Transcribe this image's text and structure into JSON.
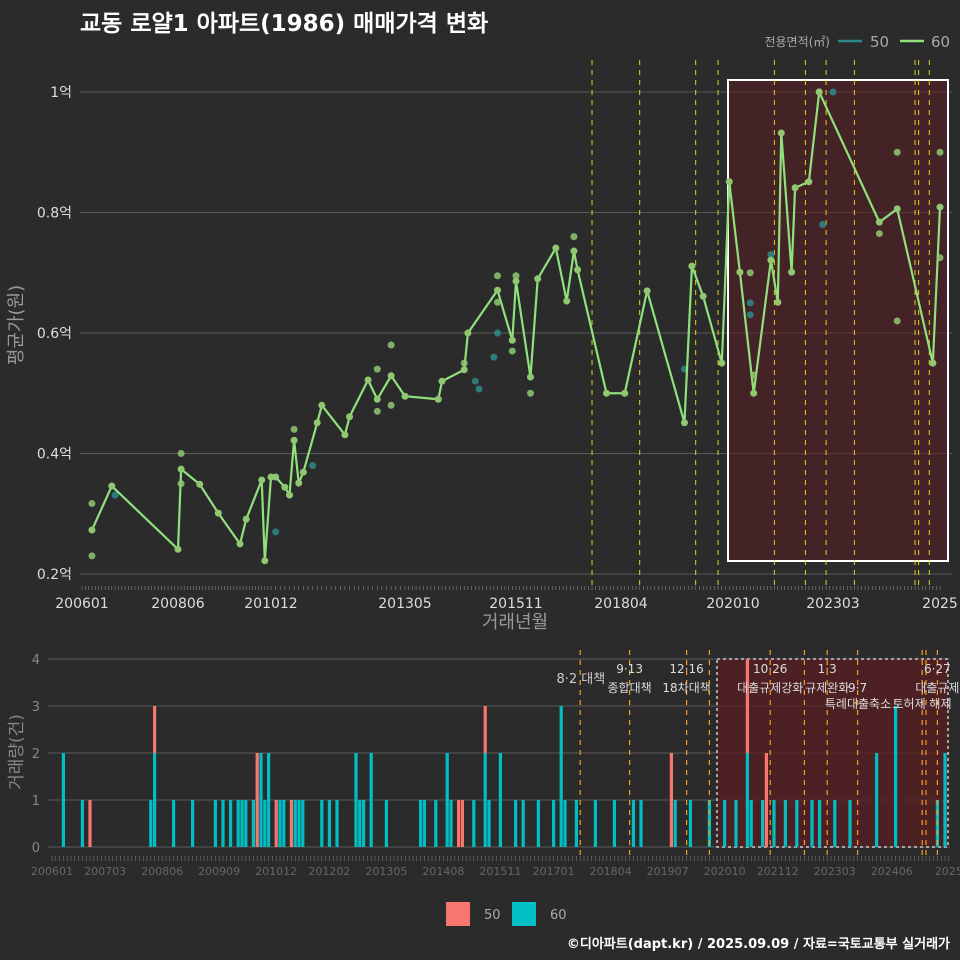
{
  "title": "교동 로얄1 아파트(1986) 매매가격 변화",
  "footer": "©디아파트(dapt.kr) / 2025.09.09 / 자료=국토교통부 실거래가",
  "colors": {
    "bg": "#2b2b2c",
    "line60": "#90e07c",
    "line50": "#2e8b8b",
    "bar50": "#f8766d",
    "bar60": "#00bfc4",
    "policy_top": "#e0d020",
    "policy_bottom": "#f0a020",
    "highlight": "#5a1e22"
  },
  "chart_data": [
    {
      "type": "line",
      "title": "교동 로얄1 아파트(1986) 매매가격 변화",
      "xlabel": "거래년월",
      "ylabel": "평균가(원)",
      "ylim": [
        0.2,
        1.0
      ],
      "yticks": [
        {
          "v": 0.2,
          "label": "0.2억"
        },
        {
          "v": 0.4,
          "label": "0.4억"
        },
        {
          "v": 0.6,
          "label": "0.6억"
        },
        {
          "v": 0.8,
          "label": "0.8억"
        },
        {
          "v": 1.0,
          "label": "1억"
        }
      ],
      "xticks": [
        "200601",
        "200806",
        "201012",
        "201305",
        "201511",
        "201804",
        "202010",
        "202303",
        "202509"
      ],
      "xtick_labels": [
        "200601",
        "200806",
        "201012",
        "201305",
        "201511",
        "201804",
        "202010",
        "202303",
        "2025"
      ],
      "legend": {
        "title": "전용면적(㎡)",
        "position": "top-right",
        "items": [
          {
            "name": "50",
            "color": "#2e8b8b"
          },
          {
            "name": "60",
            "color": "#90e07c"
          }
        ]
      },
      "highlight_range": [
        "202010",
        "202509"
      ],
      "series": [
        {
          "name": "60",
          "line": [
            [
              "200604",
              0.273
            ],
            [
              "200610",
              0.346
            ],
            [
              "200806",
              0.241
            ],
            [
              "200807",
              0.374
            ],
            [
              "200901",
              0.349
            ],
            [
              "200907",
              0.301
            ],
            [
              "201002",
              0.25
            ],
            [
              "201004",
              0.291
            ],
            [
              "201009",
              0.356
            ],
            [
              "201010",
              0.222
            ],
            [
              "201012",
              0.361
            ],
            [
              "201101",
              0.361
            ],
            [
              "201103",
              0.344
            ],
            [
              "201104",
              0.331
            ],
            [
              "201105",
              0.422
            ],
            [
              "201106",
              0.351
            ],
            [
              "201107",
              0.369
            ],
            [
              "201110",
              0.451
            ],
            [
              "201111",
              0.48
            ],
            [
              "201204",
              0.431
            ],
            [
              "201205",
              0.461
            ],
            [
              "201209",
              0.522
            ],
            [
              "201211",
              0.49
            ],
            [
              "201302",
              0.529
            ],
            [
              "201305",
              0.495
            ],
            [
              "201402",
              0.49
            ],
            [
              "201403",
              0.52
            ],
            [
              "201409",
              0.539
            ],
            [
              "201410",
              0.6
            ],
            [
              "201506",
              0.671
            ],
            [
              "201510",
              0.588
            ],
            [
              "201511",
              0.686
            ],
            [
              "201603",
              0.527
            ],
            [
              "201605",
              0.69
            ],
            [
              "201610",
              0.741
            ],
            [
              "201701",
              0.653
            ],
            [
              "201703",
              0.736
            ],
            [
              "201704",
              0.705
            ],
            [
              "201712",
              0.5
            ],
            [
              "201805",
              0.5
            ],
            [
              "201811",
              0.67
            ],
            [
              "201909",
              0.451
            ],
            [
              "201911",
              0.711
            ],
            [
              "202002",
              0.661
            ],
            [
              "202007",
              0.55
            ],
            [
              "202009",
              0.851
            ],
            [
              "202012",
              0.701
            ],
            [
              "202104",
              0.5
            ],
            [
              "202109",
              0.721
            ],
            [
              "202111",
              0.651
            ],
            [
              "202112",
              0.932
            ],
            [
              "202203",
              0.701
            ],
            [
              "202204",
              0.841
            ],
            [
              "202208",
              0.851
            ],
            [
              "202211",
              1.0
            ],
            [
              "202404",
              0.784
            ],
            [
              "202409",
              0.806
            ],
            [
              "202507",
              0.55
            ],
            [
              "202509",
              0.809
            ]
          ],
          "points": [
            [
              "200604",
              0.317
            ],
            [
              "200604",
              0.23
            ],
            [
              "200807",
              0.4
            ],
            [
              "200807",
              0.35
            ],
            [
              "201105",
              0.44
            ],
            [
              "201211",
              0.54
            ],
            [
              "201211",
              0.47
            ],
            [
              "201302",
              0.58
            ],
            [
              "201302",
              0.48
            ],
            [
              "201409",
              0.55
            ],
            [
              "201506",
              0.651
            ],
            [
              "201506",
              0.695
            ],
            [
              "201510",
              0.57
            ],
            [
              "201511",
              0.695
            ],
            [
              "201603",
              0.5
            ],
            [
              "201703",
              0.76
            ],
            [
              "202103",
              0.7
            ],
            [
              "202104",
              0.53
            ],
            [
              "202211",
              1.0
            ],
            [
              "202404",
              0.765
            ],
            [
              "202409",
              0.62
            ],
            [
              "202409",
              0.9
            ],
            [
              "202509",
              0.9
            ],
            [
              "202509",
              0.725
            ]
          ]
        },
        {
          "name": "50",
          "points": [
            [
              "200611",
              0.331
            ],
            [
              "201101",
              0.27
            ],
            [
              "201109",
              0.38
            ],
            [
              "201412",
              0.52
            ],
            [
              "201501",
              0.507
            ],
            [
              "201505",
              0.56
            ],
            [
              "201506",
              0.6
            ],
            [
              "201909",
              0.54
            ],
            [
              "202103",
              0.65
            ],
            [
              "202103",
              0.63
            ],
            [
              "202109",
              0.73
            ],
            [
              "202212",
              0.78
            ],
            [
              "202303",
              1.0
            ]
          ]
        }
      ]
    },
    {
      "type": "bar",
      "stacked": true,
      "xlabel": "",
      "ylabel": "거래량(건)",
      "ylim": [
        0,
        4
      ],
      "yticks": [
        "0",
        "1",
        "2",
        "3",
        "4"
      ],
      "xticks": [
        "200601",
        "200703",
        "200806",
        "200909",
        "201012",
        "201202",
        "201305",
        "201408",
        "201511",
        "201701",
        "201804",
        "201907",
        "202010",
        "202112",
        "202303",
        "202406",
        "202509"
      ],
      "xtick_labels": [
        "200601",
        "200703",
        "200806",
        "200909",
        "201012",
        "201202",
        "201305",
        "201408",
        "201511",
        "201701",
        "201804",
        "201907",
        "202010",
        "202112",
        "202303",
        "202406",
        "2025"
      ],
      "legend": {
        "position": "bottom",
        "items": [
          {
            "name": "50",
            "color": "#f8766d"
          },
          {
            "name": "60",
            "color": "#00bfc4"
          }
        ]
      },
      "highlight_range": [
        "202008",
        "202509"
      ],
      "bars": [
        [
          "200604",
          0,
          2
        ],
        [
          "200609",
          0,
          1
        ],
        [
          "200611",
          1,
          0
        ],
        [
          "200803",
          0,
          1
        ],
        [
          "200804",
          1,
          2
        ],
        [
          "200809",
          0,
          1
        ],
        [
          "200902",
          0,
          1
        ],
        [
          "200908",
          0,
          1
        ],
        [
          "200910",
          0,
          1
        ],
        [
          "200912",
          0,
          1
        ],
        [
          "201002",
          0,
          1
        ],
        [
          "201003",
          0,
          1
        ],
        [
          "201004",
          0,
          1
        ],
        [
          "201006",
          0,
          1
        ],
        [
          "201007",
          2,
          0
        ],
        [
          "201008",
          0,
          2
        ],
        [
          "201009",
          0,
          1
        ],
        [
          "201010",
          0,
          2
        ],
        [
          "201012",
          1,
          0
        ],
        [
          "201101",
          0,
          1
        ],
        [
          "201102",
          0,
          1
        ],
        [
          "201104",
          1,
          0
        ],
        [
          "201105",
          0,
          1
        ],
        [
          "201106",
          0,
          1
        ],
        [
          "201107",
          0,
          1
        ],
        [
          "201112",
          0,
          1
        ],
        [
          "201202",
          0,
          1
        ],
        [
          "201204",
          0,
          1
        ],
        [
          "201209",
          0,
          2
        ],
        [
          "201210",
          0,
          1
        ],
        [
          "201211",
          0,
          1
        ],
        [
          "201301",
          0,
          2
        ],
        [
          "201305",
          0,
          1
        ],
        [
          "201402",
          0,
          1
        ],
        [
          "201403",
          0,
          1
        ],
        [
          "201406",
          0,
          1
        ],
        [
          "201409",
          0,
          2
        ],
        [
          "201410",
          0,
          1
        ],
        [
          "201412",
          1,
          0
        ],
        [
          "201501",
          1,
          0
        ],
        [
          "201504",
          0,
          1
        ],
        [
          "201507",
          1,
          2
        ],
        [
          "201508",
          0,
          1
        ],
        [
          "201511",
          0,
          2
        ],
        [
          "201603",
          0,
          1
        ],
        [
          "201605",
          0,
          1
        ],
        [
          "201609",
          0,
          1
        ],
        [
          "201701",
          0,
          1
        ],
        [
          "201703",
          0,
          3
        ],
        [
          "201704",
          0,
          1
        ],
        [
          "201707",
          0,
          1
        ],
        [
          "201712",
          0,
          1
        ],
        [
          "201805",
          0,
          1
        ],
        [
          "201810",
          0,
          1
        ],
        [
          "201812",
          0,
          1
        ],
        [
          "201908",
          2,
          0
        ],
        [
          "201909",
          0,
          1
        ],
        [
          "202001",
          0,
          1
        ],
        [
          "202006",
          0,
          1
        ],
        [
          "202010",
          0,
          1
        ],
        [
          "202101",
          0,
          1
        ],
        [
          "202104",
          2,
          2
        ],
        [
          "202105",
          0,
          1
        ],
        [
          "202108",
          0,
          1
        ],
        [
          "202109",
          2,
          0
        ],
        [
          "202111",
          0,
          1
        ],
        [
          "202202",
          0,
          1
        ],
        [
          "202205",
          0,
          1
        ],
        [
          "202209",
          0,
          1
        ],
        [
          "202211",
          0,
          1
        ],
        [
          "202303",
          0,
          1
        ],
        [
          "202307",
          0,
          1
        ],
        [
          "202402",
          0,
          2
        ],
        [
          "202407",
          0,
          3
        ],
        [
          "202506",
          0,
          1
        ],
        [
          "202508",
          0,
          2
        ]
      ]
    }
  ],
  "policies": [
    {
      "month": "201708",
      "date": "8·2 대책",
      "name": ""
    },
    {
      "month": "201809",
      "date": "9·13",
      "name": "종합대책"
    },
    {
      "month": "201912",
      "date": "12·16",
      "name": "18차대책"
    },
    {
      "month": "202006",
      "date": "",
      "name": ""
    },
    {
      "month": "202110",
      "date": "10·26",
      "name": "대출규제강화"
    },
    {
      "month": "202207",
      "date": "",
      "name": ""
    },
    {
      "month": "202301",
      "date": "1·3",
      "name": "규제완화"
    },
    {
      "month": "202309",
      "date": "",
      "name": "9·7"
    },
    {
      "month": "202502",
      "date": "",
      "name": ""
    },
    {
      "month": "202503",
      "date": "",
      "name": ""
    },
    {
      "month": "202506",
      "date": "6·27",
      "name": "대출규제"
    }
  ],
  "policy_extra": [
    "특례대출축소",
    "토허제 해제"
  ]
}
